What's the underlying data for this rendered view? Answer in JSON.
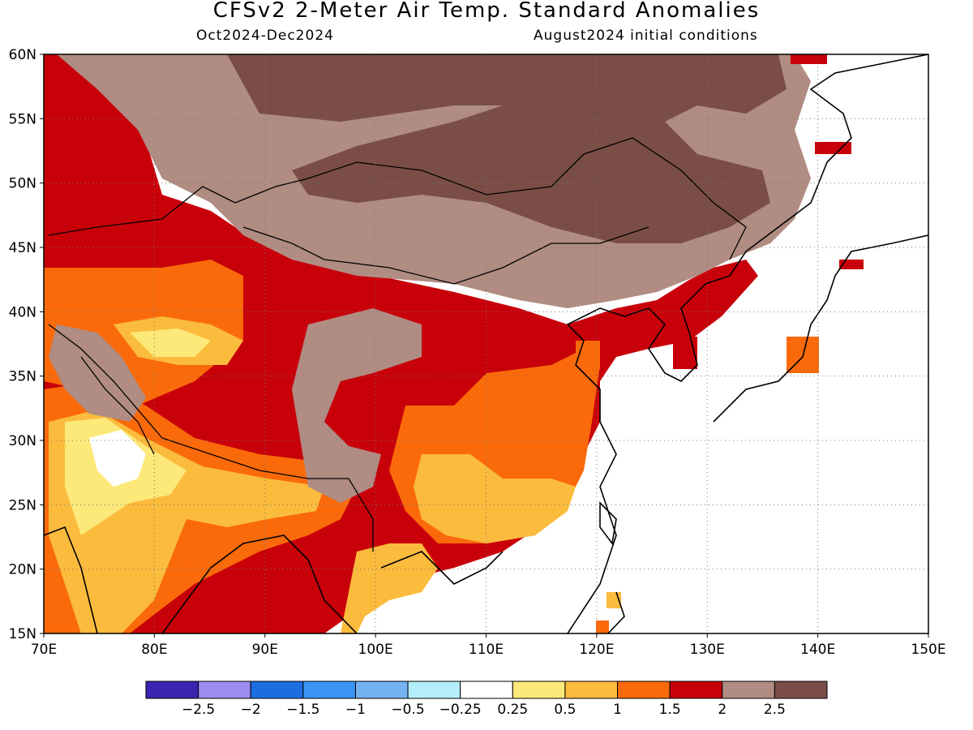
{
  "header": {
    "title": "CFSv2 2-Meter Air Temp. Standard Anomalies",
    "period": "Oct2024-Dec2024",
    "init": "August2024 initial conditions"
  },
  "map": {
    "lon_range": [
      70,
      150
    ],
    "lat_range": [
      15,
      60
    ],
    "lon_ticks": [
      {
        "value": 70,
        "label": "70E"
      },
      {
        "value": 80,
        "label": "80E"
      },
      {
        "value": 90,
        "label": "90E"
      },
      {
        "value": 100,
        "label": "100E"
      },
      {
        "value": 110,
        "label": "110E"
      },
      {
        "value": 120,
        "label": "120E"
      },
      {
        "value": 130,
        "label": "130E"
      },
      {
        "value": 140,
        "label": "140E"
      },
      {
        "value": 150,
        "label": "150E"
      }
    ],
    "lat_ticks": [
      {
        "value": 15,
        "label": "15N"
      },
      {
        "value": 20,
        "label": "20N"
      },
      {
        "value": 25,
        "label": "25N"
      },
      {
        "value": 30,
        "label": "30N"
      },
      {
        "value": 35,
        "label": "35N"
      },
      {
        "value": 40,
        "label": "40N"
      },
      {
        "value": 45,
        "label": "45N"
      },
      {
        "value": 50,
        "label": "50N"
      },
      {
        "value": 55,
        "label": "55N"
      },
      {
        "value": 60,
        "label": "60N"
      }
    ],
    "grid": "dotted"
  },
  "colorbar": {
    "colors": [
      "#3a25b0",
      "#9a8cf0",
      "#1c6ee0",
      "#3b95f5",
      "#74b2f2",
      "#b4eefa",
      "#ffffff",
      "#fde97a",
      "#fbbb3c",
      "#fa6a0a",
      "#c8000a",
      "#b08c82",
      "#7a4e46"
    ],
    "labels": [
      "-2.5",
      "-2",
      "-1.5",
      "-1",
      "-0.5",
      "-0.25",
      "0.25",
      "0.5",
      "1",
      "1.5",
      "2",
      "2.5"
    ]
  }
}
